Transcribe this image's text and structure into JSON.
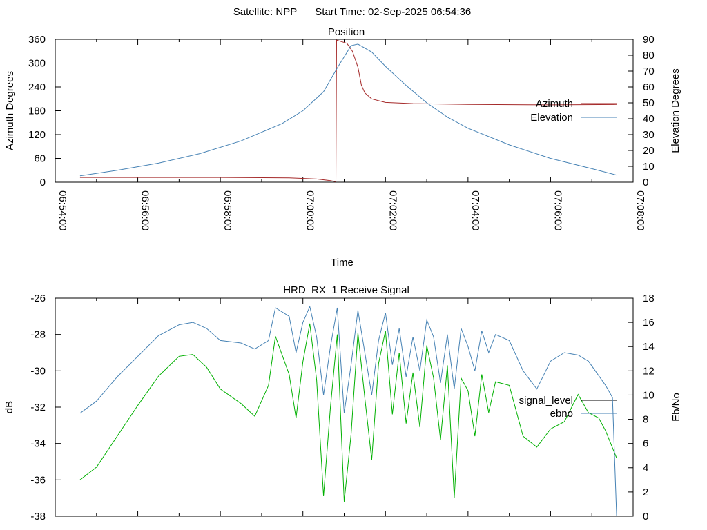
{
  "header": {
    "satellite": "Satellite: NPP",
    "start_time": "Start Time: 02-Sep-2025 06:54:36"
  },
  "chart_data": [
    {
      "type": "line",
      "title": "Position",
      "xlabel": "Time",
      "ylabel": "Azimuth Degrees",
      "y2label": "Elevation Degrees",
      "x_ticks": [
        "06:54:00",
        "06:56:00",
        "06:58:00",
        "07:00:00",
        "07:02:00",
        "07:04:00",
        "07:06:00",
        "07:08:00"
      ],
      "xlim": [
        "06:54:00",
        "07:08:00"
      ],
      "ylim": [
        0,
        360
      ],
      "y_ticks": [
        "0",
        "60",
        "120",
        "180",
        "240",
        "300",
        "360"
      ],
      "y2lim": [
        0,
        90
      ],
      "y2_ticks": [
        "0",
        "10",
        "20",
        "30",
        "40",
        "50",
        "60",
        "70",
        "80",
        "90"
      ],
      "legend_position": "right",
      "grid": false,
      "series": [
        {
          "name": "Azimuth",
          "axis": "y",
          "color": "#a52a2a",
          "points": [
            [
              "06:54:36",
              12
            ],
            [
              "06:56:00",
              12
            ],
            [
              "06:58:00",
              12
            ],
            [
              "06:59:40",
              11
            ],
            [
              "07:00:20",
              8
            ],
            [
              "07:00:40",
              4
            ],
            [
              "07:00:48",
              1
            ],
            [
              "07:00:49",
              358
            ],
            [
              "07:01:04",
              350
            ],
            [
              "07:01:12",
              330
            ],
            [
              "07:01:20",
              290
            ],
            [
              "07:01:25",
              245
            ],
            [
              "07:01:30",
              225
            ],
            [
              "07:01:40",
              210
            ],
            [
              "07:02:00",
              201
            ],
            [
              "07:02:40",
              198
            ],
            [
              "07:04:00",
              196
            ],
            [
              "07:06:00",
              195
            ],
            [
              "07:07:36",
              196
            ]
          ]
        },
        {
          "name": "Elevation",
          "axis": "y2",
          "color": "#4682b4",
          "points": [
            [
              "06:54:36",
              4
            ],
            [
              "06:55:30",
              7.5
            ],
            [
              "06:56:30",
              12
            ],
            [
              "06:57:30",
              18
            ],
            [
              "06:58:30",
              26
            ],
            [
              "06:59:30",
              37
            ],
            [
              "07:00:00",
              45
            ],
            [
              "07:00:30",
              57
            ],
            [
              "07:00:50",
              72
            ],
            [
              "07:01:10",
              86
            ],
            [
              "07:01:20",
              87
            ],
            [
              "07:01:40",
              82
            ],
            [
              "07:02:00",
              73
            ],
            [
              "07:02:30",
              61
            ],
            [
              "07:03:00",
              50
            ],
            [
              "07:03:30",
              41
            ],
            [
              "07:04:00",
              34
            ],
            [
              "07:05:00",
              23.5
            ],
            [
              "07:06:00",
              15
            ],
            [
              "07:07:00",
              8.5
            ],
            [
              "07:07:36",
              4.5
            ]
          ]
        }
      ]
    },
    {
      "type": "line",
      "title": "HRD_RX_1 Receive Signal",
      "xlabel": "",
      "ylabel": "dB",
      "y2label": "Eb/No",
      "xlim": [
        "06:54:00",
        "07:08:00"
      ],
      "ylim": [
        -38,
        -26
      ],
      "y_ticks": [
        "-38",
        "-36",
        "-34",
        "-32",
        "-30",
        "-28",
        "-26"
      ],
      "y2lim": [
        0,
        18
      ],
      "y2_ticks": [
        "0",
        "2",
        "4",
        "6",
        "8",
        "10",
        "12",
        "14",
        "16",
        "18"
      ],
      "legend_position": "right",
      "grid": false,
      "series": [
        {
          "name": "signal_level",
          "axis": "y",
          "color": "#00b000",
          "legend_color": "#000000",
          "points": [
            [
              "06:54:36",
              -36.0
            ],
            [
              "06:55:00",
              -35.3
            ],
            [
              "06:55:30",
              -33.6
            ],
            [
              "06:56:00",
              -31.9
            ],
            [
              "06:56:30",
              -30.3
            ],
            [
              "06:57:00",
              -29.2
            ],
            [
              "06:57:20",
              -29.1
            ],
            [
              "06:57:40",
              -29.8
            ],
            [
              "06:58:00",
              -31.0
            ],
            [
              "06:58:30",
              -31.8
            ],
            [
              "06:58:50",
              -32.5
            ],
            [
              "06:59:10",
              -30.8
            ],
            [
              "06:59:20",
              -28.1
            ],
            [
              "06:59:40",
              -30.2
            ],
            [
              "06:59:50",
              -32.6
            ],
            [
              "07:00:00",
              -29.5
            ],
            [
              "07:00:10",
              -27.4
            ],
            [
              "07:00:20",
              -30.5
            ],
            [
              "07:00:30",
              -36.9
            ],
            [
              "07:00:40",
              -32.0
            ],
            [
              "07:00:50",
              -28.0
            ],
            [
              "07:01:00",
              -37.2
            ],
            [
              "07:01:10",
              -33.5
            ],
            [
              "07:01:20",
              -27.9
            ],
            [
              "07:01:30",
              -31.5
            ],
            [
              "07:01:40",
              -34.9
            ],
            [
              "07:01:50",
              -29.6
            ],
            [
              "07:02:00",
              -27.8
            ],
            [
              "07:02:10",
              -32.4
            ],
            [
              "07:02:20",
              -29.0
            ],
            [
              "07:02:30",
              -32.9
            ],
            [
              "07:02:40",
              -30.1
            ],
            [
              "07:02:50",
              -33.1
            ],
            [
              "07:03:00",
              -28.6
            ],
            [
              "07:03:10",
              -30.4
            ],
            [
              "07:03:20",
              -33.8
            ],
            [
              "07:03:30",
              -29.7
            ],
            [
              "07:03:40",
              -37.0
            ],
            [
              "07:03:50",
              -30.4
            ],
            [
              "07:04:00",
              -31.1
            ],
            [
              "07:04:10",
              -33.6
            ],
            [
              "07:04:20",
              -30.2
            ],
            [
              "07:04:30",
              -32.3
            ],
            [
              "07:04:40",
              -30.6
            ],
            [
              "07:05:00",
              -30.8
            ],
            [
              "07:05:20",
              -33.6
            ],
            [
              "07:05:40",
              -34.2
            ],
            [
              "07:06:00",
              -33.2
            ],
            [
              "07:06:20",
              -32.8
            ],
            [
              "07:06:40",
              -31.3
            ],
            [
              "07:06:55",
              -32.3
            ],
            [
              "07:07:10",
              -32.6
            ],
            [
              "07:07:20",
              -33.3
            ],
            [
              "07:07:36",
              -34.8
            ]
          ]
        },
        {
          "name": "ebno",
          "axis": "y2",
          "color": "#4682b4",
          "points": [
            [
              "06:54:36",
              8.5
            ],
            [
              "06:55:00",
              9.5
            ],
            [
              "06:55:30",
              11.5
            ],
            [
              "06:56:00",
              13.2
            ],
            [
              "06:56:30",
              14.9
            ],
            [
              "06:57:00",
              15.8
            ],
            [
              "06:57:20",
              16.0
            ],
            [
              "06:57:40",
              15.5
            ],
            [
              "06:58:00",
              14.5
            ],
            [
              "06:58:30",
              14.3
            ],
            [
              "06:58:50",
              13.8
            ],
            [
              "06:59:10",
              14.5
            ],
            [
              "06:59:20",
              17.2
            ],
            [
              "06:59:40",
              16.5
            ],
            [
              "06:59:50",
              13.5
            ],
            [
              "07:00:00",
              16.0
            ],
            [
              "07:00:10",
              17.3
            ],
            [
              "07:00:20",
              14.8
            ],
            [
              "07:00:30",
              10.0
            ],
            [
              "07:00:40",
              14.0
            ],
            [
              "07:00:50",
              17.2
            ],
            [
              "07:01:00",
              8.5
            ],
            [
              "07:01:10",
              12.5
            ],
            [
              "07:01:20",
              17.0
            ],
            [
              "07:01:30",
              13.5
            ],
            [
              "07:01:40",
              10.0
            ],
            [
              "07:01:50",
              14.5
            ],
            [
              "07:02:00",
              16.8
            ],
            [
              "07:02:10",
              12.5
            ],
            [
              "07:02:20",
              15.5
            ],
            [
              "07:02:30",
              11.5
            ],
            [
              "07:02:40",
              14.8
            ],
            [
              "07:02:50",
              12.0
            ],
            [
              "07:03:00",
              16.2
            ],
            [
              "07:03:10",
              14.8
            ],
            [
              "07:03:20",
              11.0
            ],
            [
              "07:03:30",
              15.0
            ],
            [
              "07:03:40",
              10.5
            ],
            [
              "07:03:50",
              15.5
            ],
            [
              "07:04:00",
              14.0
            ],
            [
              "07:04:10",
              12.0
            ],
            [
              "07:04:20",
              15.3
            ],
            [
              "07:04:30",
              13.5
            ],
            [
              "07:04:40",
              15.0
            ],
            [
              "07:05:00",
              14.5
            ],
            [
              "07:05:20",
              12.0
            ],
            [
              "07:05:40",
              10.5
            ],
            [
              "07:06:00",
              12.8
            ],
            [
              "07:06:20",
              13.5
            ],
            [
              "07:06:40",
              13.3
            ],
            [
              "07:06:55",
              12.8
            ],
            [
              "07:07:10",
              11.6
            ],
            [
              "07:07:20",
              10.8
            ],
            [
              "07:07:30",
              9.8
            ],
            [
              "07:07:36",
              0.0
            ]
          ]
        }
      ]
    }
  ]
}
